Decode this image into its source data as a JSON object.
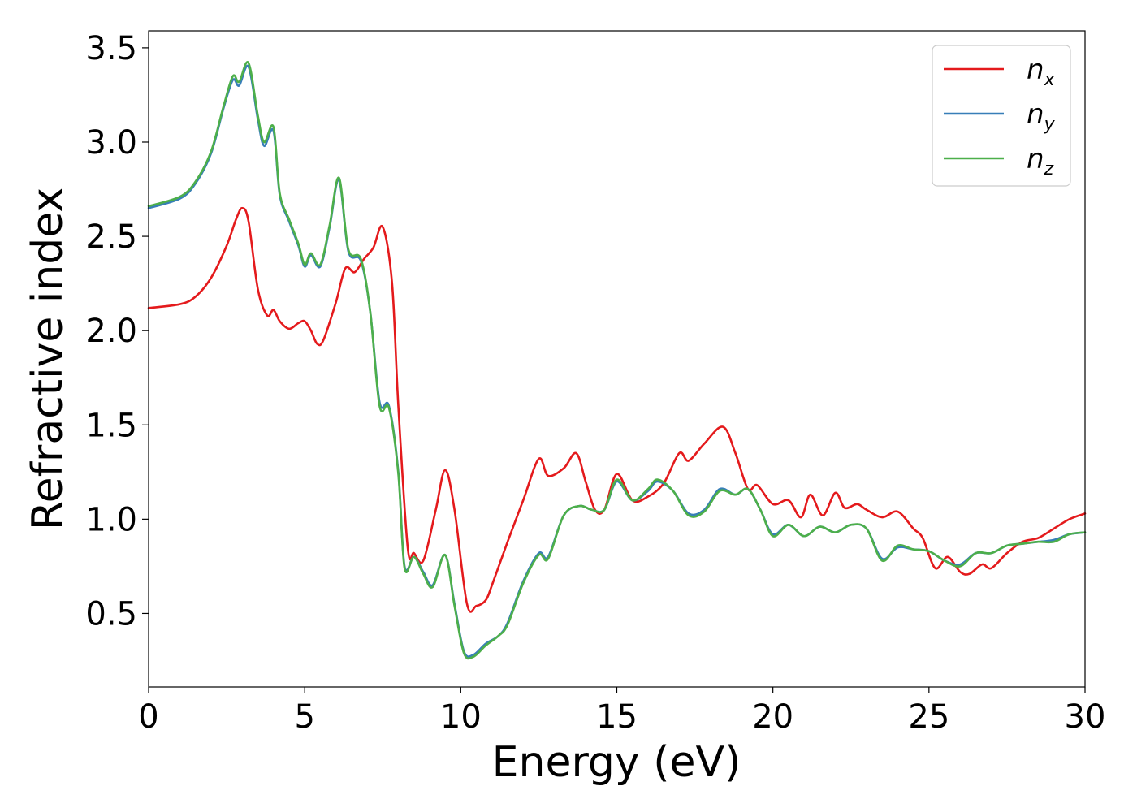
{
  "chart_data": {
    "type": "line",
    "xlabel": "Energy (eV)",
    "ylabel": "Refractive index",
    "xlim": [
      0,
      30
    ],
    "ylim": [
      0.11,
      3.59
    ],
    "xticks": [
      0,
      5,
      10,
      15,
      20,
      25,
      30
    ],
    "xtick_labels": [
      "0",
      "5",
      "10",
      "15",
      "20",
      "25",
      "30"
    ],
    "yticks": [
      0.5,
      1.0,
      1.5,
      2.0,
      2.5,
      3.0,
      3.5
    ],
    "ytick_labels": [
      "0.5",
      "1.0",
      "1.5",
      "2.0",
      "2.5",
      "3.0",
      "3.5"
    ],
    "grid": false,
    "legend_position": "top-right",
    "series": [
      {
        "name": "n_x",
        "label_base": "n",
        "label_sub": "x",
        "color": "#e41a1c",
        "x": [
          0,
          1,
          1.5,
          2,
          2.5,
          2.8,
          3.0,
          3.2,
          3.5,
          3.8,
          4.0,
          4.2,
          4.5,
          4.8,
          5.0,
          5.2,
          5.4,
          5.6,
          6.0,
          6.3,
          6.6,
          6.9,
          7.2,
          7.5,
          7.8,
          8.0,
          8.3,
          8.5,
          8.8,
          9.2,
          9.5,
          9.8,
          10.2,
          10.5,
          10.8,
          11.0,
          11.5,
          12.0,
          12.5,
          12.8,
          13.3,
          13.7,
          14.0,
          14.3,
          14.6,
          15.0,
          15.5,
          16.0,
          16.5,
          17.0,
          17.3,
          17.8,
          18.4,
          18.8,
          19.2,
          19.5,
          20.0,
          20.5,
          20.9,
          21.2,
          21.6,
          22.0,
          22.3,
          22.7,
          23.0,
          23.5,
          24.0,
          24.5,
          24.8,
          25.2,
          25.6,
          26.0,
          26.3,
          26.7,
          27.0,
          27.5,
          28.0,
          28.5,
          29.0,
          29.5,
          30.0
        ],
        "values": [
          2.12,
          2.14,
          2.18,
          2.28,
          2.45,
          2.59,
          2.65,
          2.58,
          2.22,
          2.08,
          2.11,
          2.05,
          2.01,
          2.04,
          2.05,
          2.0,
          1.93,
          1.95,
          2.15,
          2.33,
          2.31,
          2.38,
          2.44,
          2.55,
          2.25,
          1.6,
          0.85,
          0.82,
          0.78,
          1.05,
          1.26,
          1.05,
          0.55,
          0.54,
          0.57,
          0.65,
          0.88,
          1.1,
          1.32,
          1.23,
          1.27,
          1.35,
          1.2,
          1.05,
          1.05,
          1.24,
          1.1,
          1.12,
          1.19,
          1.35,
          1.31,
          1.4,
          1.49,
          1.35,
          1.16,
          1.18,
          1.08,
          1.1,
          1.01,
          1.13,
          1.02,
          1.14,
          1.06,
          1.08,
          1.05,
          1.01,
          1.04,
          0.95,
          0.9,
          0.74,
          0.8,
          0.72,
          0.71,
          0.76,
          0.74,
          0.82,
          0.88,
          0.9,
          0.95,
          1.0,
          1.03
        ]
      },
      {
        "name": "n_y",
        "label_base": "n",
        "label_sub": "y",
        "color": "#377eb8",
        "x": [
          0,
          1,
          1.5,
          2,
          2.4,
          2.7,
          2.9,
          3.2,
          3.5,
          3.7,
          4.0,
          4.2,
          4.5,
          4.8,
          5.0,
          5.2,
          5.5,
          5.8,
          6.1,
          6.4,
          6.8,
          7.1,
          7.4,
          7.7,
          8.0,
          8.2,
          8.5,
          8.8,
          9.1,
          9.5,
          9.8,
          10.1,
          10.4,
          10.8,
          11.2,
          11.5,
          12.0,
          12.5,
          12.8,
          13.3,
          13.8,
          14.2,
          14.6,
          15.0,
          15.5,
          16.0,
          16.3,
          16.8,
          17.3,
          17.8,
          18.3,
          18.8,
          19.2,
          19.6,
          20.0,
          20.5,
          21.0,
          21.5,
          22.0,
          22.5,
          23.0,
          23.5,
          24.0,
          24.5,
          25.0,
          25.5,
          26.0,
          26.5,
          27.0,
          27.5,
          28.0,
          28.5,
          29.0,
          29.5,
          30.0
        ],
        "values": [
          2.65,
          2.7,
          2.78,
          2.94,
          3.18,
          3.33,
          3.3,
          3.4,
          3.12,
          2.98,
          3.06,
          2.72,
          2.58,
          2.45,
          2.34,
          2.4,
          2.34,
          2.55,
          2.8,
          2.42,
          2.37,
          2.1,
          1.62,
          1.6,
          1.25,
          0.75,
          0.8,
          0.72,
          0.65,
          0.81,
          0.55,
          0.3,
          0.28,
          0.34,
          0.38,
          0.45,
          0.67,
          0.82,
          0.8,
          1.02,
          1.07,
          1.05,
          1.05,
          1.2,
          1.1,
          1.15,
          1.2,
          1.15,
          1.03,
          1.05,
          1.16,
          1.13,
          1.16,
          1.05,
          0.92,
          0.97,
          0.91,
          0.96,
          0.93,
          0.97,
          0.95,
          0.79,
          0.85,
          0.84,
          0.83,
          0.78,
          0.76,
          0.82,
          0.82,
          0.86,
          0.87,
          0.88,
          0.89,
          0.92,
          0.93
        ]
      },
      {
        "name": "n_z",
        "label_base": "n",
        "label_sub": "z",
        "color": "#4daf4a",
        "x": [
          0,
          1,
          1.5,
          2,
          2.4,
          2.7,
          2.9,
          3.2,
          3.5,
          3.7,
          4.0,
          4.2,
          4.5,
          4.8,
          5.0,
          5.2,
          5.5,
          5.8,
          6.1,
          6.4,
          6.8,
          7.1,
          7.4,
          7.7,
          8.0,
          8.2,
          8.5,
          8.8,
          9.1,
          9.5,
          9.8,
          10.1,
          10.4,
          10.8,
          11.2,
          11.5,
          12.0,
          12.5,
          12.8,
          13.3,
          13.8,
          14.2,
          14.6,
          15.0,
          15.5,
          16.0,
          16.3,
          16.8,
          17.3,
          17.8,
          18.3,
          18.8,
          19.2,
          19.6,
          20.0,
          20.5,
          21.0,
          21.5,
          22.0,
          22.5,
          23.0,
          23.5,
          24.0,
          24.5,
          25.0,
          25.5,
          26.0,
          26.5,
          27.0,
          27.5,
          28.0,
          28.5,
          29.0,
          29.5,
          30.0
        ],
        "values": [
          2.66,
          2.71,
          2.79,
          2.95,
          3.19,
          3.35,
          3.32,
          3.42,
          3.14,
          3.0,
          3.08,
          2.73,
          2.59,
          2.46,
          2.35,
          2.41,
          2.35,
          2.56,
          2.81,
          2.43,
          2.38,
          2.1,
          1.6,
          1.59,
          1.24,
          0.74,
          0.8,
          0.71,
          0.64,
          0.81,
          0.54,
          0.29,
          0.27,
          0.33,
          0.38,
          0.44,
          0.66,
          0.81,
          0.79,
          1.02,
          1.07,
          1.05,
          1.05,
          1.21,
          1.1,
          1.16,
          1.21,
          1.15,
          1.02,
          1.04,
          1.15,
          1.13,
          1.16,
          1.05,
          0.91,
          0.97,
          0.91,
          0.96,
          0.93,
          0.97,
          0.95,
          0.78,
          0.86,
          0.84,
          0.83,
          0.78,
          0.75,
          0.82,
          0.82,
          0.86,
          0.87,
          0.88,
          0.88,
          0.92,
          0.93
        ]
      }
    ]
  }
}
